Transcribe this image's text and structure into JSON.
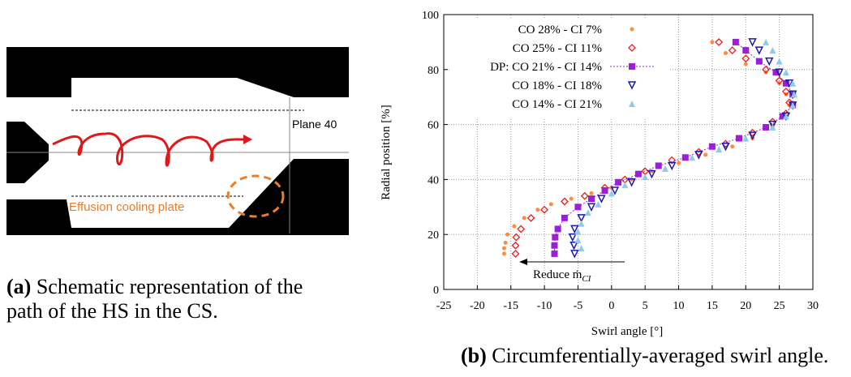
{
  "panel_a": {
    "labels": [
      "Plane 40",
      "Effusion cooling plate"
    ],
    "caption": {
      "tag": "(a)",
      "lines": [
        "Schematic representation of the",
        "path of the HS in the CS."
      ]
    }
  },
  "chart_data": {
    "type": "scatter",
    "xlabel": "Swirl angle [°]",
    "ylabel": "Radial position [%]",
    "xlim": [
      -25,
      30
    ],
    "xticks": [
      -25,
      -20,
      -15,
      -10,
      -5,
      0,
      5,
      10,
      15,
      20,
      25,
      30
    ],
    "ylim": [
      0,
      100
    ],
    "yticks": [
      0,
      20,
      40,
      60,
      80,
      100
    ],
    "grid": true,
    "legend": "upper-left",
    "annotation": {
      "text": "Reduce ṁ",
      "sub": "CI"
    },
    "series": [
      {
        "name": "CO 28% - CI 7%",
        "color": "#ff8c3c",
        "marker": "dot",
        "x": [
          -16,
          -16,
          -15.8,
          -15.5,
          -14.5,
          -13,
          -11,
          -9,
          -6,
          -3,
          0,
          3,
          6,
          10,
          14,
          18,
          21,
          24,
          26,
          26.5,
          26,
          25,
          23,
          20,
          17,
          15
        ],
        "values": [
          13,
          15,
          17,
          20,
          23,
          26,
          29,
          31,
          33,
          35,
          37,
          40,
          43,
          46,
          49,
          52,
          55,
          59,
          63,
          67,
          71,
          75,
          79,
          82,
          86,
          90
        ]
      },
      {
        "name": "CO 25% - CI 11%",
        "color": "#ee1c1c",
        "marker": "diamond",
        "x": [
          -14.3,
          -14.3,
          -14.2,
          -13.5,
          -12,
          -10,
          -7,
          -4,
          -1,
          2,
          5,
          9,
          13,
          17,
          21,
          24,
          26,
          26.5,
          26,
          25,
          23,
          20,
          18,
          16
        ],
        "values": [
          13,
          16,
          19,
          22,
          26,
          29,
          32,
          34,
          37,
          40,
          43,
          47,
          50,
          53,
          57,
          61,
          64,
          68,
          72,
          76,
          80,
          84,
          87,
          90
        ]
      },
      {
        "name": "DP: CO 21% - CI 14%",
        "color": "#9a1fd6",
        "marker": "square",
        "line": "dotted",
        "x": [
          -8.5,
          -8.5,
          -8.4,
          -8,
          -7,
          -5,
          -3,
          -1,
          1,
          4,
          7,
          11,
          15,
          19,
          23,
          25.5,
          27,
          27,
          26,
          24.5,
          22,
          20,
          18.5
        ],
        "values": [
          13,
          16,
          19,
          22,
          26,
          30,
          33,
          36,
          39,
          42,
          45,
          48,
          52,
          55,
          59,
          63,
          67,
          71,
          75,
          79,
          83,
          87,
          90
        ]
      },
      {
        "name": "CO 18% - CI 18%",
        "color": "#1a1aaa",
        "marker": "triangle-down",
        "x": [
          -5.5,
          -5.6,
          -5.8,
          -5.5,
          -4.5,
          -3,
          -1.5,
          0.5,
          3,
          6,
          9,
          13,
          17,
          21,
          24,
          26,
          27,
          27,
          26.5,
          25,
          23.5,
          22,
          21
        ],
        "values": [
          13,
          16,
          19,
          22,
          26,
          30,
          33,
          36,
          39,
          42,
          45,
          49,
          52,
          56,
          60,
          63,
          67,
          71,
          75,
          79,
          83,
          87,
          90
        ]
      },
      {
        "name": "CO 14% - CI 21%",
        "color": "#8ccbea",
        "marker": "triangle-up",
        "x": [
          -4.5,
          -5,
          -5,
          -4.5,
          -3.5,
          -2,
          0,
          2,
          5,
          8,
          12,
          16,
          20,
          24,
          26,
          27,
          27.2,
          27,
          26,
          25,
          24,
          23
        ],
        "values": [
          15,
          18,
          21,
          24,
          28,
          31,
          35,
          38,
          41,
          44,
          48,
          51,
          55,
          59,
          63,
          67,
          71,
          75,
          79,
          83,
          87,
          90
        ]
      }
    ],
    "caption": {
      "tag": "(b)",
      "text": "Circumferentially-averaged swirl angle."
    }
  }
}
